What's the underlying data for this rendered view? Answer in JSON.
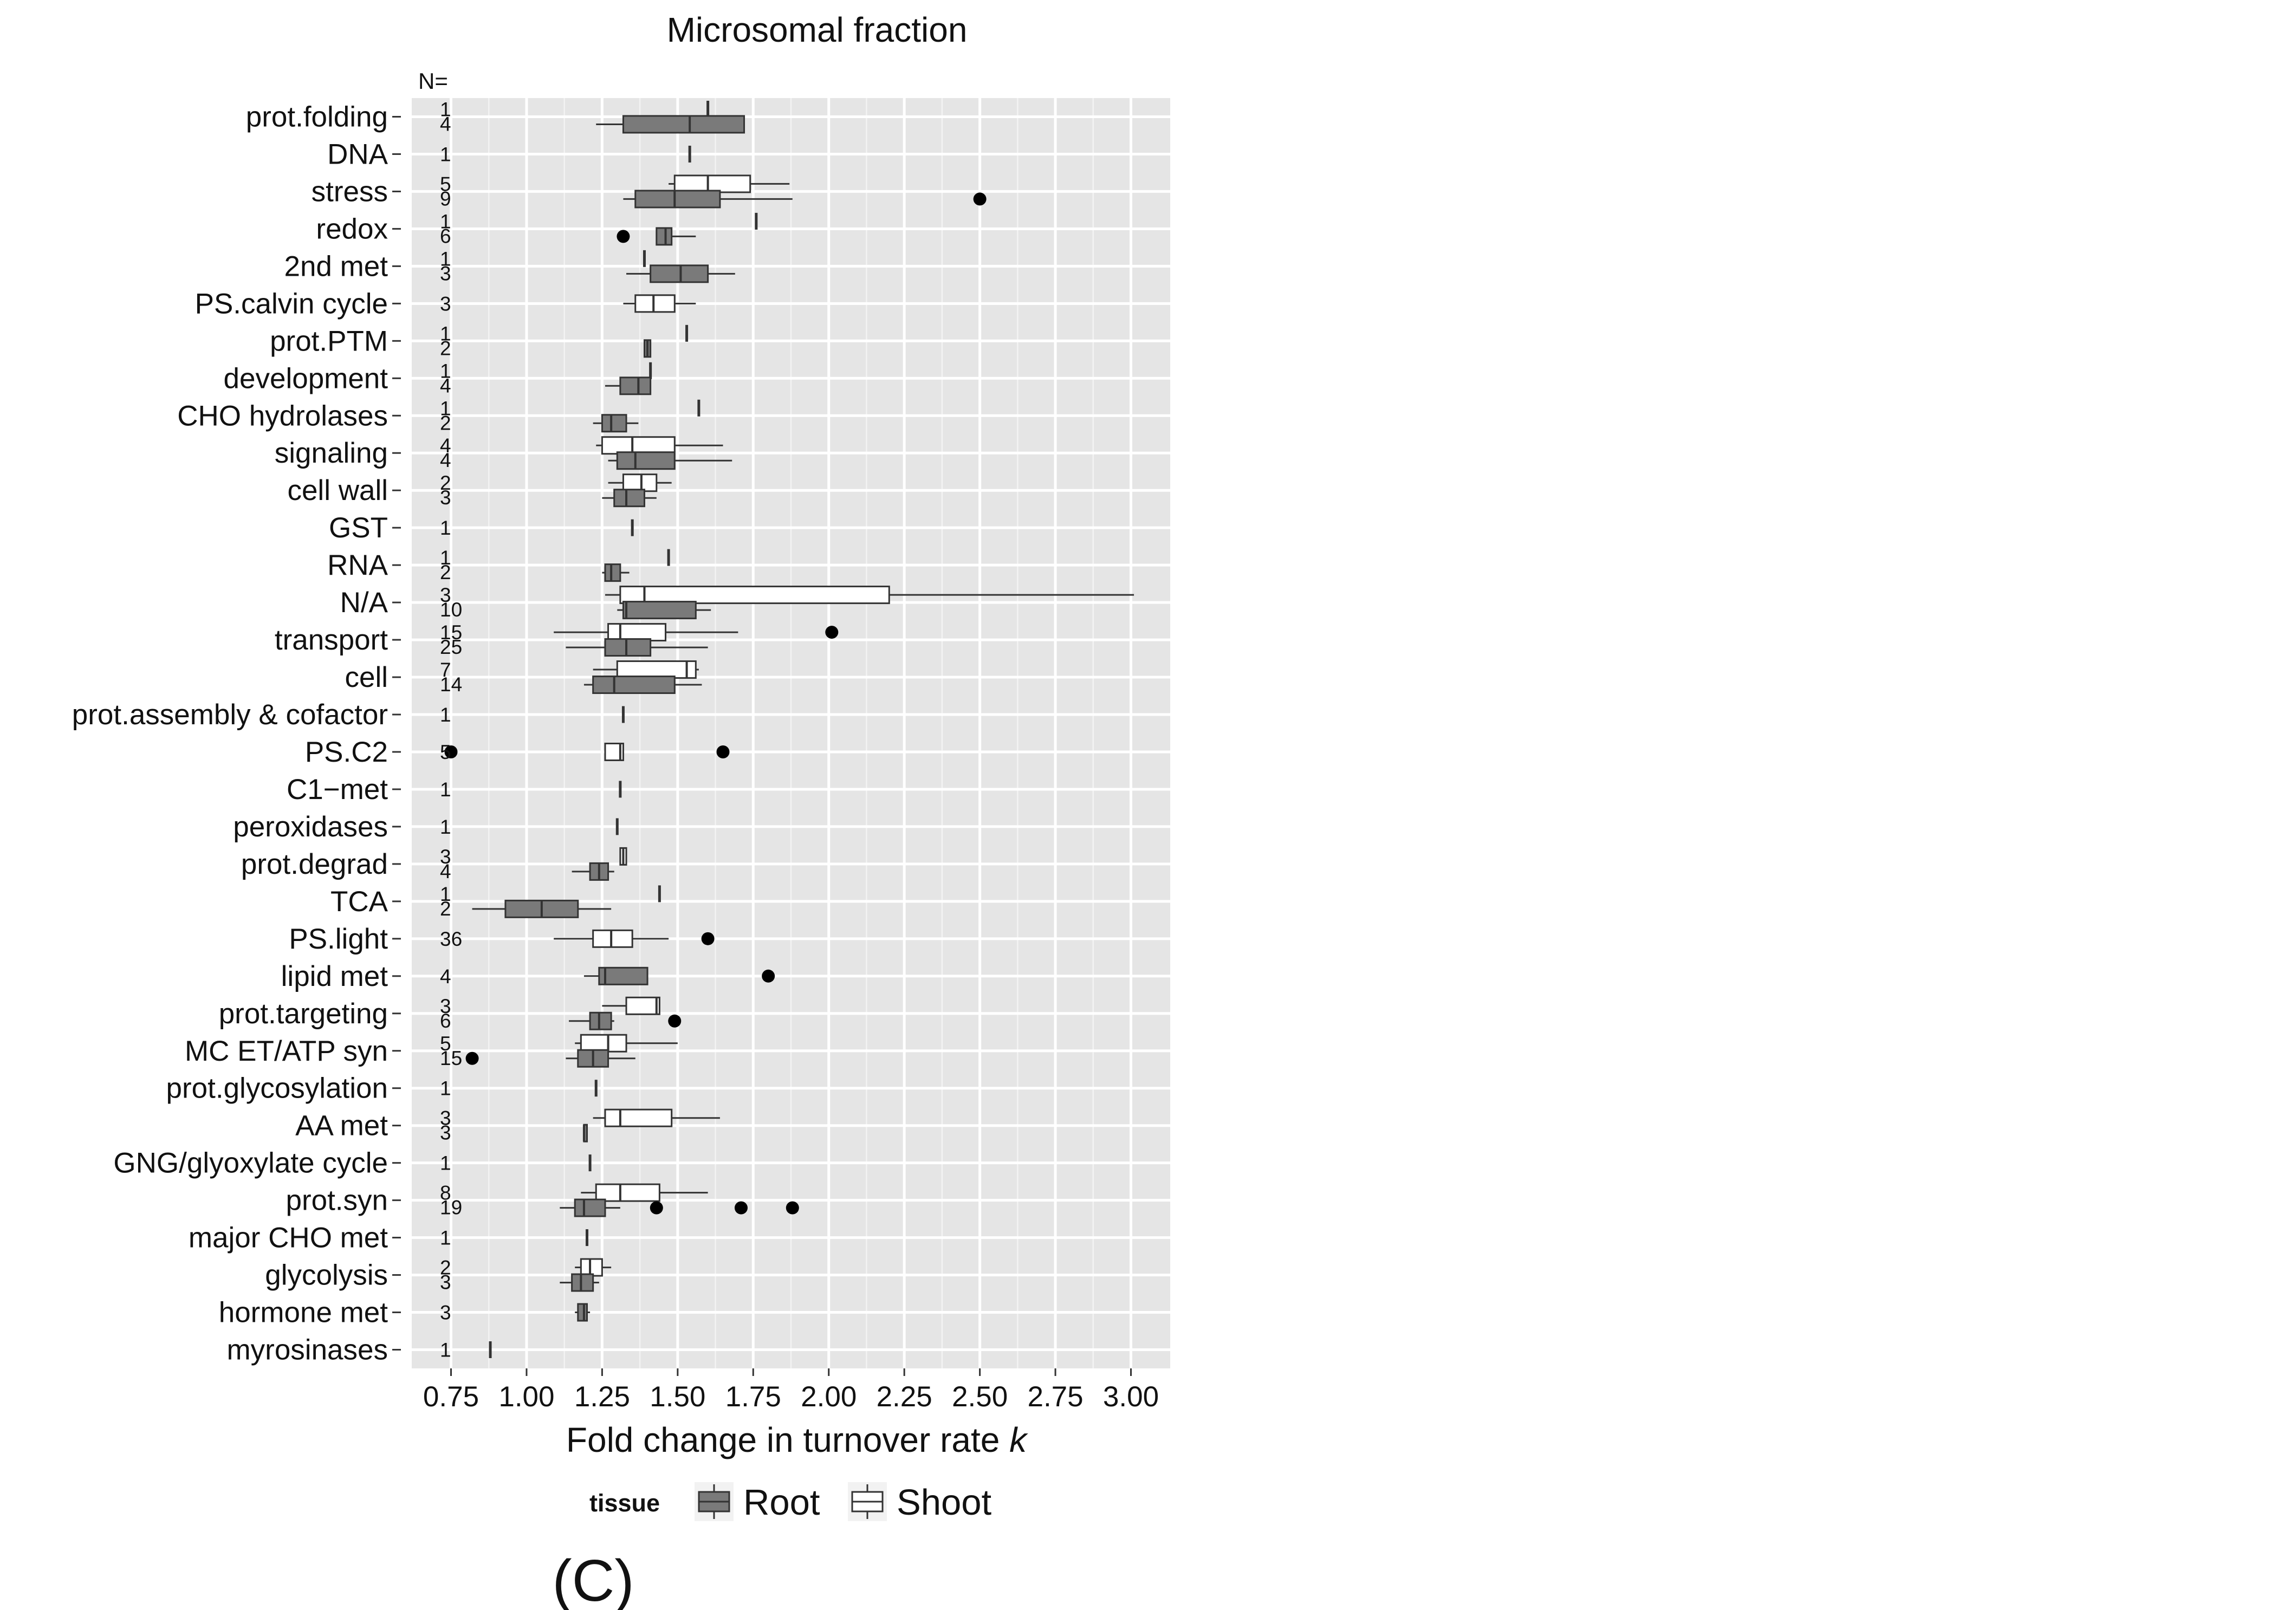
{
  "figure": {
    "panel_label": "(C)",
    "n_header": "N="
  },
  "chart_data": {
    "type": "boxplot",
    "orientation": "horizontal",
    "title": "Microsomal fraction",
    "xlabel": "Fold change in turnover rate ",
    "xlabel_italic": "k",
    "ylabel": "",
    "xlim": [
      0.62,
      3.13
    ],
    "xticks": [
      0.75,
      1.0,
      1.25,
      1.5,
      1.75,
      2.0,
      2.25,
      2.5,
      2.75,
      3.0
    ],
    "xtick_labels": [
      "0.75",
      "1.00",
      "1.25",
      "1.50",
      "1.75",
      "2.00",
      "2.25",
      "2.50",
      "2.75",
      "3.00"
    ],
    "grid": true,
    "legend": {
      "position": "bottom",
      "title": "tissue",
      "entries": [
        {
          "name": "Root",
          "fill": "#7a7a7a"
        },
        {
          "name": "Shoot",
          "fill": "#ffffff"
        }
      ]
    },
    "colors": {
      "panel_bg": "#e5e5e5",
      "grid": "#ffffff",
      "root_fill": "#7a7a7a",
      "shoot_fill": "#ffffff",
      "outline": "#333333",
      "outlier": "#000000"
    },
    "categories": [
      "prot.folding",
      "DNA",
      "stress",
      "redox",
      "2nd met",
      "PS.calvin cycle",
      "prot.PTM",
      "development",
      "CHO hydrolases",
      "signaling",
      "cell wall",
      "GST",
      "RNA",
      "N/A",
      "transport",
      "cell",
      "prot.assembly & cofactor",
      "PS.C2",
      "C1−met",
      "peroxidases",
      "prot.degrad",
      "TCA",
      "PS.light",
      "lipid met",
      "prot.targeting",
      "MC ET/ATP syn",
      "prot.glycosylation",
      "AA met",
      "GNG/glyoxylate cycle",
      "prot.syn",
      "major CHO met",
      "glycolysis",
      "hormone met",
      "myrosinases"
    ],
    "n_labels": [
      [
        "1",
        "4"
      ],
      [
        "1"
      ],
      [
        "5",
        "9"
      ],
      [
        "1",
        "6"
      ],
      [
        "1",
        "3"
      ],
      [
        "3"
      ],
      [
        "1",
        "2"
      ],
      [
        "1",
        "4"
      ],
      [
        "1",
        "2"
      ],
      [
        "4",
        "4"
      ],
      [
        "2",
        "3"
      ],
      [
        "1"
      ],
      [
        "1",
        "2"
      ],
      [
        "3",
        "10"
      ],
      [
        "15",
        "25"
      ],
      [
        "7",
        "14"
      ],
      [
        "1"
      ],
      [
        "5"
      ],
      [
        "1"
      ],
      [
        "1"
      ],
      [
        "3",
        "4"
      ],
      [
        "1",
        "2"
      ],
      [
        "36"
      ],
      [
        "4"
      ],
      [
        "3",
        "6"
      ],
      [
        "5",
        "15"
      ],
      [
        "1"
      ],
      [
        "3",
        "3"
      ],
      [
        "1"
      ],
      [
        "8",
        "19"
      ],
      [
        "1"
      ],
      [
        "2",
        "3"
      ],
      [
        "3"
      ],
      [
        "1"
      ]
    ],
    "boxes": [
      {
        "category": "prot.folding",
        "tissue": "Shoot",
        "whislo": 1.6,
        "q1": 1.6,
        "med": 1.6,
        "q3": 1.6,
        "whishi": 1.6,
        "outliers": []
      },
      {
        "category": "prot.folding",
        "tissue": "Root",
        "whislo": 1.23,
        "q1": 1.32,
        "med": 1.54,
        "q3": 1.72,
        "whishi": 1.72,
        "outliers": []
      },
      {
        "category": "DNA",
        "tissue": "Root",
        "whislo": 1.54,
        "q1": 1.54,
        "med": 1.54,
        "q3": 1.54,
        "whishi": 1.54,
        "outliers": []
      },
      {
        "category": "stress",
        "tissue": "Shoot",
        "whislo": 1.47,
        "q1": 1.49,
        "med": 1.6,
        "q3": 1.74,
        "whishi": 1.87,
        "outliers": []
      },
      {
        "category": "stress",
        "tissue": "Root",
        "whislo": 1.32,
        "q1": 1.36,
        "med": 1.49,
        "q3": 1.64,
        "whishi": 1.88,
        "outliers": [
          2.5
        ]
      },
      {
        "category": "redox",
        "tissue": "Shoot",
        "whislo": 1.76,
        "q1": 1.76,
        "med": 1.76,
        "q3": 1.76,
        "whishi": 1.76,
        "outliers": []
      },
      {
        "category": "redox",
        "tissue": "Root",
        "whislo": 1.43,
        "q1": 1.43,
        "med": 1.46,
        "q3": 1.48,
        "whishi": 1.56,
        "outliers": [
          1.32
        ]
      },
      {
        "category": "2nd met",
        "tissue": "Shoot",
        "whislo": 1.39,
        "q1": 1.39,
        "med": 1.39,
        "q3": 1.39,
        "whishi": 1.39,
        "outliers": []
      },
      {
        "category": "2nd met",
        "tissue": "Root",
        "whislo": 1.33,
        "q1": 1.41,
        "med": 1.51,
        "q3": 1.6,
        "whishi": 1.69,
        "outliers": []
      },
      {
        "category": "PS.calvin cycle",
        "tissue": "Shoot",
        "whislo": 1.32,
        "q1": 1.36,
        "med": 1.42,
        "q3": 1.49,
        "whishi": 1.56,
        "outliers": []
      },
      {
        "category": "prot.PTM",
        "tissue": "Shoot",
        "whislo": 1.53,
        "q1": 1.53,
        "med": 1.53,
        "q3": 1.53,
        "whishi": 1.53,
        "outliers": []
      },
      {
        "category": "prot.PTM",
        "tissue": "Root",
        "whislo": 1.39,
        "q1": 1.39,
        "med": 1.4,
        "q3": 1.41,
        "whishi": 1.41,
        "outliers": []
      },
      {
        "category": "development",
        "tissue": "Shoot",
        "whislo": 1.41,
        "q1": 1.41,
        "med": 1.41,
        "q3": 1.41,
        "whishi": 1.41,
        "outliers": []
      },
      {
        "category": "development",
        "tissue": "Root",
        "whislo": 1.26,
        "q1": 1.31,
        "med": 1.37,
        "q3": 1.41,
        "whishi": 1.41,
        "outliers": []
      },
      {
        "category": "CHO hydrolases",
        "tissue": "Shoot",
        "whislo": 1.57,
        "q1": 1.57,
        "med": 1.57,
        "q3": 1.57,
        "whishi": 1.57,
        "outliers": []
      },
      {
        "category": "CHO hydrolases",
        "tissue": "Root",
        "whislo": 1.22,
        "q1": 1.25,
        "med": 1.28,
        "q3": 1.33,
        "whishi": 1.37,
        "outliers": []
      },
      {
        "category": "signaling",
        "tissue": "Shoot",
        "whislo": 1.23,
        "q1": 1.25,
        "med": 1.35,
        "q3": 1.49,
        "whishi": 1.65,
        "outliers": []
      },
      {
        "category": "signaling",
        "tissue": "Root",
        "whislo": 1.27,
        "q1": 1.3,
        "med": 1.36,
        "q3": 1.49,
        "whishi": 1.68,
        "outliers": []
      },
      {
        "category": "cell wall",
        "tissue": "Shoot",
        "whislo": 1.27,
        "q1": 1.32,
        "med": 1.38,
        "q3": 1.43,
        "whishi": 1.48,
        "outliers": []
      },
      {
        "category": "cell wall",
        "tissue": "Root",
        "whislo": 1.25,
        "q1": 1.29,
        "med": 1.33,
        "q3": 1.39,
        "whishi": 1.43,
        "outliers": []
      },
      {
        "category": "GST",
        "tissue": "Root",
        "whislo": 1.35,
        "q1": 1.35,
        "med": 1.35,
        "q3": 1.35,
        "whishi": 1.35,
        "outliers": []
      },
      {
        "category": "RNA",
        "tissue": "Shoot",
        "whislo": 1.47,
        "q1": 1.47,
        "med": 1.47,
        "q3": 1.47,
        "whishi": 1.47,
        "outliers": []
      },
      {
        "category": "RNA",
        "tissue": "Root",
        "whislo": 1.25,
        "q1": 1.26,
        "med": 1.28,
        "q3": 1.31,
        "whishi": 1.34,
        "outliers": []
      },
      {
        "category": "N/A",
        "tissue": "Shoot",
        "whislo": 1.26,
        "q1": 1.31,
        "med": 1.39,
        "q3": 2.2,
        "whishi": 3.01,
        "outliers": []
      },
      {
        "category": "N/A",
        "tissue": "Root",
        "whislo": 1.3,
        "q1": 1.32,
        "med": 1.33,
        "q3": 1.56,
        "whishi": 1.61,
        "outliers": []
      },
      {
        "category": "transport",
        "tissue": "Shoot",
        "whislo": 1.09,
        "q1": 1.27,
        "med": 1.31,
        "q3": 1.46,
        "whishi": 1.7,
        "outliers": [
          2.01
        ]
      },
      {
        "category": "transport",
        "tissue": "Root",
        "whislo": 1.13,
        "q1": 1.26,
        "med": 1.33,
        "q3": 1.41,
        "whishi": 1.6,
        "outliers": []
      },
      {
        "category": "cell",
        "tissue": "Shoot",
        "whislo": 1.22,
        "q1": 1.3,
        "med": 1.53,
        "q3": 1.56,
        "whishi": 1.57,
        "outliers": []
      },
      {
        "category": "cell",
        "tissue": "Root",
        "whislo": 1.19,
        "q1": 1.22,
        "med": 1.29,
        "q3": 1.49,
        "whishi": 1.58,
        "outliers": []
      },
      {
        "category": "prot.assembly & cofactor",
        "tissue": "Root",
        "whislo": 1.32,
        "q1": 1.32,
        "med": 1.32,
        "q3": 1.32,
        "whishi": 1.32,
        "outliers": []
      },
      {
        "category": "PS.C2",
        "tissue": "Shoot",
        "whislo": 1.26,
        "q1": 1.26,
        "med": 1.31,
        "q3": 1.32,
        "whishi": 1.32,
        "outliers": [
          0.75,
          1.65
        ]
      },
      {
        "category": "C1−met",
        "tissue": "Root",
        "whislo": 1.31,
        "q1": 1.31,
        "med": 1.31,
        "q3": 1.31,
        "whishi": 1.31,
        "outliers": []
      },
      {
        "category": "peroxidases",
        "tissue": "Root",
        "whislo": 1.3,
        "q1": 1.3,
        "med": 1.3,
        "q3": 1.3,
        "whishi": 1.3,
        "outliers": []
      },
      {
        "category": "prot.degrad",
        "tissue": "Shoot",
        "whislo": 1.31,
        "q1": 1.31,
        "med": 1.32,
        "q3": 1.33,
        "whishi": 1.33,
        "outliers": []
      },
      {
        "category": "prot.degrad",
        "tissue": "Root",
        "whislo": 1.15,
        "q1": 1.21,
        "med": 1.24,
        "q3": 1.27,
        "whishi": 1.29,
        "outliers": []
      },
      {
        "category": "TCA",
        "tissue": "Shoot",
        "whislo": 1.44,
        "q1": 1.44,
        "med": 1.44,
        "q3": 1.44,
        "whishi": 1.44,
        "outliers": []
      },
      {
        "category": "TCA",
        "tissue": "Root",
        "whislo": 0.82,
        "q1": 0.93,
        "med": 1.05,
        "q3": 1.17,
        "whishi": 1.28,
        "outliers": []
      },
      {
        "category": "PS.light",
        "tissue": "Shoot",
        "whislo": 1.09,
        "q1": 1.22,
        "med": 1.28,
        "q3": 1.35,
        "whishi": 1.47,
        "outliers": [
          1.6
        ]
      },
      {
        "category": "lipid met",
        "tissue": "Root",
        "whislo": 1.19,
        "q1": 1.24,
        "med": 1.26,
        "q3": 1.4,
        "whishi": 1.4,
        "outliers": [
          1.8
        ]
      },
      {
        "category": "prot.targeting",
        "tissue": "Shoot",
        "whislo": 1.25,
        "q1": 1.33,
        "med": 1.43,
        "q3": 1.44,
        "whishi": 1.44,
        "outliers": []
      },
      {
        "category": "prot.targeting",
        "tissue": "Root",
        "whislo": 1.14,
        "q1": 1.21,
        "med": 1.24,
        "q3": 1.28,
        "whishi": 1.29,
        "outliers": [
          1.49
        ]
      },
      {
        "category": "MC ET/ATP syn",
        "tissue": "Shoot",
        "whislo": 1.16,
        "q1": 1.18,
        "med": 1.27,
        "q3": 1.33,
        "whishi": 1.5,
        "outliers": []
      },
      {
        "category": "MC ET/ATP syn",
        "tissue": "Root",
        "whislo": 1.13,
        "q1": 1.17,
        "med": 1.22,
        "q3": 1.27,
        "whishi": 1.36,
        "outliers": [
          0.82
        ]
      },
      {
        "category": "prot.glycosylation",
        "tissue": "Root",
        "whislo": 1.23,
        "q1": 1.23,
        "med": 1.23,
        "q3": 1.23,
        "whishi": 1.23,
        "outliers": []
      },
      {
        "category": "AA met",
        "tissue": "Shoot",
        "whislo": 1.22,
        "q1": 1.26,
        "med": 1.31,
        "q3": 1.48,
        "whishi": 1.64,
        "outliers": []
      },
      {
        "category": "AA met",
        "tissue": "Root",
        "whislo": 1.19,
        "q1": 1.19,
        "med": 1.19,
        "q3": 1.2,
        "whishi": 1.2,
        "outliers": []
      },
      {
        "category": "GNG/glyoxylate cycle",
        "tissue": "Root",
        "whislo": 1.21,
        "q1": 1.21,
        "med": 1.21,
        "q3": 1.21,
        "whishi": 1.21,
        "outliers": []
      },
      {
        "category": "prot.syn",
        "tissue": "Shoot",
        "whislo": 1.18,
        "q1": 1.23,
        "med": 1.31,
        "q3": 1.44,
        "whishi": 1.6,
        "outliers": []
      },
      {
        "category": "prot.syn",
        "tissue": "Root",
        "whislo": 1.11,
        "q1": 1.16,
        "med": 1.19,
        "q3": 1.26,
        "whishi": 1.31,
        "outliers": [
          1.43,
          1.71,
          1.88
        ]
      },
      {
        "category": "major CHO met",
        "tissue": "Root",
        "whislo": 1.2,
        "q1": 1.2,
        "med": 1.2,
        "q3": 1.2,
        "whishi": 1.2,
        "outliers": []
      },
      {
        "category": "glycolysis",
        "tissue": "Shoot",
        "whislo": 1.16,
        "q1": 1.18,
        "med": 1.21,
        "q3": 1.25,
        "whishi": 1.28,
        "outliers": []
      },
      {
        "category": "glycolysis",
        "tissue": "Root",
        "whislo": 1.11,
        "q1": 1.15,
        "med": 1.18,
        "q3": 1.22,
        "whishi": 1.24,
        "outliers": []
      },
      {
        "category": "hormone met",
        "tissue": "Root",
        "whislo": 1.16,
        "q1": 1.17,
        "med": 1.19,
        "q3": 1.2,
        "whishi": 1.21,
        "outliers": []
      },
      {
        "category": "myrosinases",
        "tissue": "Root",
        "whislo": 0.88,
        "q1": 0.88,
        "med": 0.88,
        "q3": 0.88,
        "whishi": 0.88,
        "outliers": []
      }
    ]
  }
}
